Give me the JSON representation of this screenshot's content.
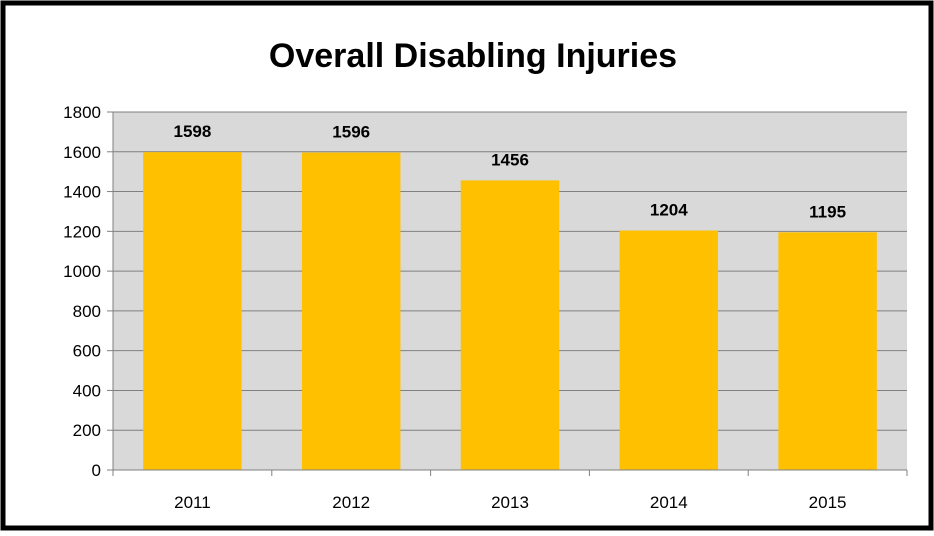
{
  "chart_data": {
    "type": "bar",
    "title": "Overall Disabling Injuries",
    "xlabel": "",
    "ylabel": "",
    "categories": [
      "2011",
      "2012",
      "2013",
      "2014",
      "2015"
    ],
    "values": [
      1598,
      1596,
      1456,
      1204,
      1195
    ],
    "data_labels": [
      "1598",
      "1596",
      "1456",
      "1204",
      "1195"
    ],
    "ylim": [
      0,
      1800
    ],
    "yticks": [
      "0",
      "200",
      "400",
      "600",
      "800",
      "1000",
      "1200",
      "1400",
      "1600",
      "1800"
    ],
    "grid": true,
    "legend": "none",
    "colors": {
      "bar": "#FFC000",
      "plot_background": "#D9D9D9",
      "gridline": "#808080",
      "frame": "#000000"
    }
  }
}
